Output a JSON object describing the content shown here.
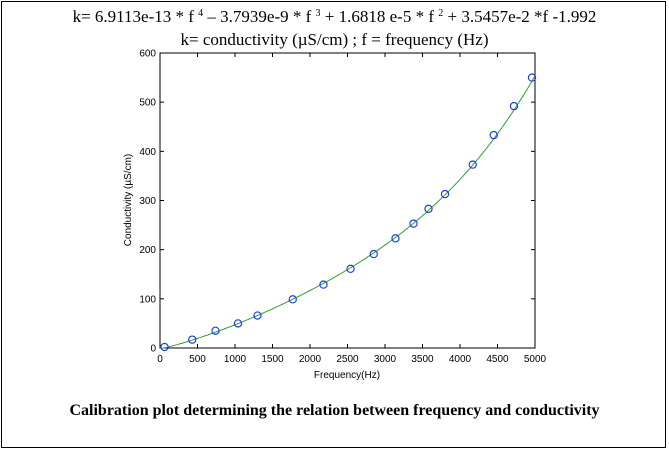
{
  "equation": {
    "line1": {
      "p1": "k= 6.9113e-13 * f ",
      "e4": "4",
      "p2": " – 3.7939e-9 * f ",
      "e3": "3",
      "p3": " + 1.6818 e-5 * f ",
      "e2": "2",
      "p4": " + 3.5457e-2 *f -1.992"
    },
    "line2": "k= conductivity (µS/cm) ; f = frequency (Hz)"
  },
  "caption": "Calibration plot determining the relation between frequency and conductivity",
  "colors": {
    "fit": "#2ea02e",
    "points": "#1f3fdf",
    "axis": "#000000"
  },
  "chart_data": {
    "type": "scatter",
    "xlabel": "Frequency(Hz)",
    "ylabel": "Conductivity (µS/cm)",
    "xlim": [
      0,
      5000
    ],
    "ylim": [
      0,
      600
    ],
    "xticks": [
      0,
      500,
      1000,
      1500,
      2000,
      2500,
      3000,
      3500,
      4000,
      4500,
      5000
    ],
    "yticks": [
      0,
      100,
      200,
      300,
      400,
      500,
      600
    ],
    "grid": false,
    "fit_coefficients": {
      "a4": 6.9113e-13,
      "a3": -3.7939e-09,
      "a2": 1.6818e-05,
      "a1": 0.035457,
      "a0": -1.992
    },
    "fit_range": [
      0,
      5000
    ],
    "points": {
      "x": [
        60,
        430,
        740,
        1040,
        1300,
        1770,
        2180,
        2540,
        2850,
        3140,
        3380,
        3580,
        3800,
        4170,
        4450,
        4720,
        4960
      ],
      "y": [
        2,
        17,
        35,
        50,
        66,
        99,
        129,
        161,
        191,
        223,
        253,
        283,
        313,
        373,
        433,
        492,
        550
      ]
    }
  }
}
